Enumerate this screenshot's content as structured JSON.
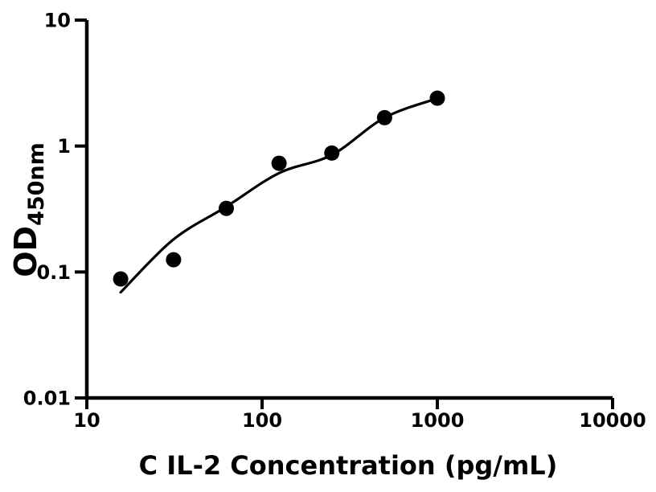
{
  "figure": {
    "background_color": "#ffffff",
    "ink_color": "#000000"
  },
  "chart_data": {
    "type": "scatter",
    "title": "",
    "xlabel": "C IL-2 Concentration (pg/mL)",
    "ylabel_main": "OD",
    "ylabel_sub": "450nm",
    "x_scale": "log",
    "y_scale": "log",
    "xlim": [
      10,
      10000
    ],
    "ylim": [
      0.01,
      10
    ],
    "x_tick_values": [
      10,
      100,
      1000,
      10000
    ],
    "x_tick_labels": [
      "10",
      "100",
      "1000",
      "10000"
    ],
    "y_tick_values": [
      10,
      1,
      0.1,
      0.01
    ],
    "y_tick_labels": [
      "10",
      "1",
      "0.1",
      "0.01"
    ],
    "grid": false,
    "legend": null,
    "marker_shape": "circle",
    "marker_color": "#000000",
    "curve_color": "#000000",
    "points": [
      {
        "x": 15.6,
        "y": 0.088
      },
      {
        "x": 31.25,
        "y": 0.125
      },
      {
        "x": 62.5,
        "y": 0.32
      },
      {
        "x": 125,
        "y": 0.73
      },
      {
        "x": 250,
        "y": 0.88
      },
      {
        "x": 500,
        "y": 1.68
      },
      {
        "x": 1000,
        "y": 2.4
      }
    ],
    "fit_curve_points": [
      {
        "x": 15.6,
        "y": 0.069
      },
      {
        "x": 31,
        "y": 0.18
      },
      {
        "x": 62.5,
        "y": 0.33
      },
      {
        "x": 125,
        "y": 0.61
      },
      {
        "x": 250,
        "y": 0.85
      },
      {
        "x": 500,
        "y": 1.68
      },
      {
        "x": 1000,
        "y": 2.39
      }
    ]
  }
}
